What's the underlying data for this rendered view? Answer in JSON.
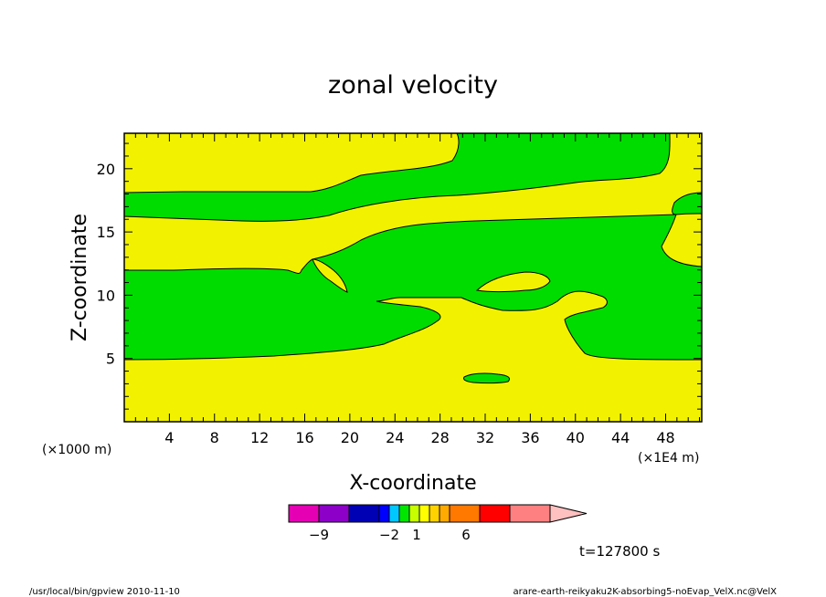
{
  "chart_data": {
    "type": "heatmap",
    "title": "zonal velocity",
    "xlabel": "X-coordinate",
    "ylabel": "Z-coordinate",
    "x_scale_note": "(×1E4 m)",
    "y_scale_note": "(×1000 m)",
    "xlim": [
      0,
      51.2
    ],
    "ylim": [
      0,
      22.8
    ],
    "x_ticks": [
      "4",
      "8",
      "12",
      "16",
      "20",
      "24",
      "28",
      "32",
      "36",
      "40",
      "44",
      "48"
    ],
    "y_ticks": [
      "5",
      "10",
      "15",
      "20"
    ],
    "colors": {
      "positive": "#f2f200",
      "negative": "#00dc00"
    },
    "colorbar": {
      "labels": [
        "−9",
        "−2",
        "1",
        "6"
      ],
      "colors": [
        "#e600b4",
        "#8c00c8",
        "#0000b4",
        "#0000ff",
        "#00c8ff",
        "#00e600",
        "#c8ff00",
        "#ffff00",
        "#ffd200",
        "#ffaa00",
        "#ff7800",
        "#ff0000",
        "#ff8080",
        "#ffc0c0"
      ]
    },
    "time_label": "t=127800 s",
    "grid": false
  },
  "footer": {
    "left": "/usr/local/bin/gpview   2010-11-10",
    "right": "arare-earth-reikyaku2K-absorbing5-noEvap_VelX.nc@VelX"
  }
}
